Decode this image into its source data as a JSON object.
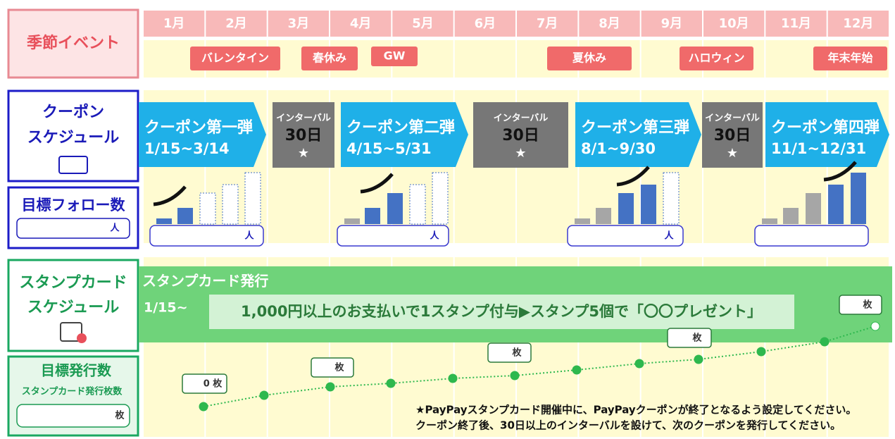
{
  "header": {
    "title": "季節イベント",
    "months": [
      "1月",
      "2月",
      "3月",
      "4月",
      "5月",
      "6月",
      "7月",
      "8月",
      "9月",
      "10月",
      "11月",
      "12月"
    ]
  },
  "events": [
    "バレンタイン",
    "春休み",
    "GW",
    "夏休み",
    "ハロウィン",
    "年末年始"
  ],
  "coupon": {
    "title_lines": [
      "クーポン",
      "スケジュール"
    ],
    "waves": [
      {
        "title": "クーポン第一弾",
        "period": "1/15~3/14"
      },
      {
        "title": "クーポン第二弾",
        "period": "4/15~5/31"
      },
      {
        "title": "クーポン第三弾",
        "period": "8/1~9/30"
      },
      {
        "title": "クーポン第四弾",
        "period": "11/1~12/31"
      }
    ],
    "intervals": [
      {
        "label": "インターバル",
        "days": "30日",
        "mark": "★"
      },
      {
        "label": "インターバル",
        "days": "30日",
        "mark": "★"
      },
      {
        "label": "インターバル",
        "days": "30日",
        "mark": "★"
      }
    ]
  },
  "follow": {
    "title": "目標フォロー数",
    "unit": "人",
    "boxes": [
      "人",
      "人",
      "人"
    ]
  },
  "stamp": {
    "title_lines": [
      "スタンプカード",
      "スケジュール"
    ],
    "banner_title": "スタンプカード発行",
    "start": "1/15~",
    "message": "1,000円以上のお支払いで1スタンプ付与▶スタンプ5個で「〇〇プレゼント」",
    "target_title": "目標発行数",
    "target_subtitle": "スタンプカード発行枚数",
    "target_unit": "枚",
    "point_labels": [
      "0 枚",
      "枚",
      "枚",
      "枚",
      "枚"
    ]
  },
  "notes": [
    "★PayPayスタンプカード開催中に、PayPayクーポンが終了となるよう設定してください。",
    "クーポン終了後、30日以上のインターバルを設けて、次のクーポンを発行してください。"
  ]
}
